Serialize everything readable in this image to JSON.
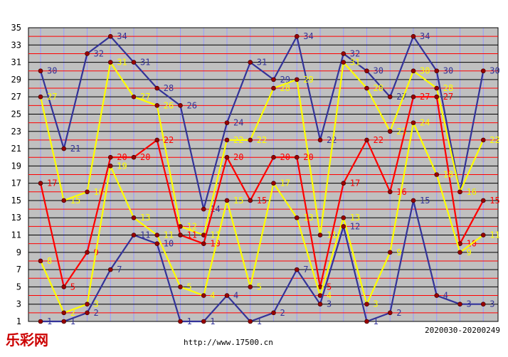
{
  "chart_data": {
    "type": "line",
    "x": [
      1,
      2,
      3,
      4,
      5,
      6,
      7,
      8,
      9,
      10,
      11,
      12,
      13,
      14,
      15,
      16,
      17,
      18,
      19,
      20
    ],
    "ylim": [
      1,
      35
    ],
    "y_ticks": [
      1,
      3,
      5,
      7,
      9,
      11,
      13,
      15,
      17,
      19,
      21,
      23,
      25,
      27,
      29,
      31,
      33,
      35
    ],
    "grid": true,
    "series": [
      {
        "color": "#333399",
        "values": [
          30,
          21,
          32,
          34,
          31,
          28,
          26,
          14,
          24,
          31,
          29,
          34,
          22,
          32,
          30,
          27,
          34,
          30,
          16,
          30
        ]
      },
      {
        "color": "#ffff00",
        "values": [
          27,
          15,
          16,
          31,
          27,
          26,
          12,
          11,
          22,
          22,
          28,
          29,
          11,
          31,
          28,
          23,
          30,
          28,
          16,
          22
        ]
      },
      {
        "color": "#ff0000",
        "values": [
          17,
          5,
          9,
          20,
          20,
          22,
          11,
          10,
          20,
          15,
          20,
          20,
          5,
          17,
          22,
          16,
          27,
          27,
          10,
          15
        ]
      },
      {
        "color": "#ffff00",
        "values": [
          8,
          2,
          3,
          19,
          13,
          11,
          5,
          4,
          15,
          5,
          17,
          13,
          4,
          13,
          3,
          9,
          24,
          18,
          9,
          11
        ]
      },
      {
        "color": "#333399",
        "values": [
          1,
          1,
          2,
          7,
          11,
          10,
          1,
          1,
          4,
          1,
          2,
          7,
          3,
          12,
          1,
          2,
          15,
          4,
          3,
          3
        ]
      }
    ]
  },
  "colors": {
    "plot_bg": "#c0c0c0",
    "hgrid_odd": "#000000",
    "hgrid_even": "#ff0000",
    "vgrid": "#9999ff",
    "point": "#990000"
  },
  "footer": {
    "logo": "乐彩网",
    "url": "http://www.17500.cn",
    "period": "2020030-20200249"
  }
}
